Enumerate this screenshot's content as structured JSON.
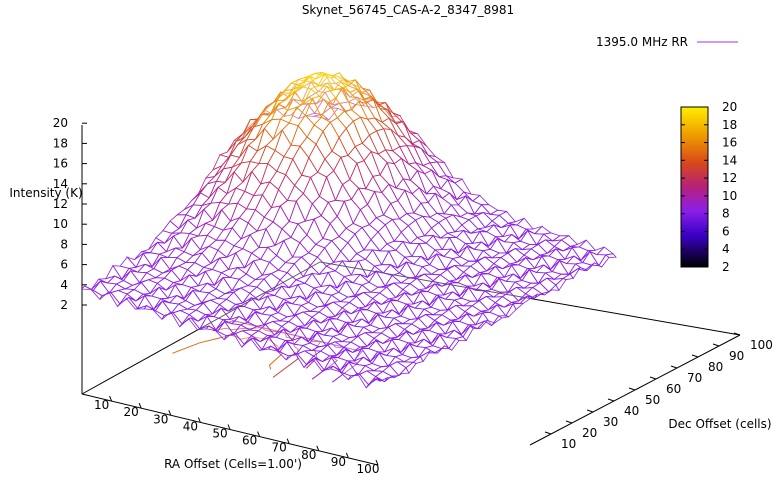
{
  "chart_data": {
    "type": "surface3d",
    "title": "Skynet_56745_CAS-A-2_8347_8981",
    "legend": {
      "entry": "1395.0 MHz RR",
      "color": "#9b30ff",
      "placement": "top-right"
    },
    "xlabel": "RA Offset (Cells=1.00')",
    "ylabel": "Dec Offset (cells)",
    "zlabel": "Intensity (K)",
    "x_ticks": [
      "10",
      "20",
      "30",
      "40",
      "50",
      "60",
      "70",
      "80",
      "90",
      "100"
    ],
    "y_ticks": [
      "10",
      "20",
      "30",
      "40",
      "50",
      "60",
      "70",
      "80",
      "90",
      "100"
    ],
    "z_ticks": [
      "2",
      "4",
      "6",
      "8",
      "10",
      "12",
      "14",
      "16",
      "18",
      "20"
    ],
    "xlim": [
      0,
      100
    ],
    "ylim": [
      0,
      100
    ],
    "zlim": [
      0,
      20
    ],
    "colorbar": {
      "ticks": [
        "2",
        "4",
        "6",
        "8",
        "10",
        "12",
        "14",
        "16",
        "18",
        "20"
      ],
      "range": [
        2,
        20
      ]
    },
    "peak": {
      "ra": 20,
      "dec": 75,
      "intensity": 20
    },
    "background_level": 7,
    "contour_levels": [
      8,
      10,
      12,
      14,
      16
    ]
  }
}
